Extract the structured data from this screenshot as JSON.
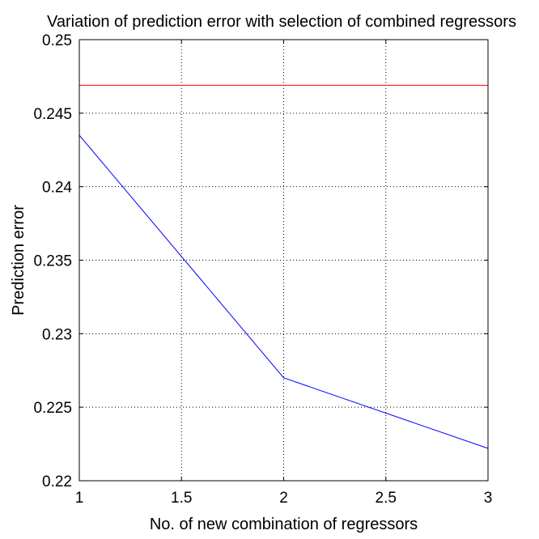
{
  "chart_data": {
    "type": "line",
    "title": "Variation of prediction error with selection of combined regressors",
    "xlabel": "No. of new combination of regressors",
    "ylabel": "Prediction error",
    "xlim": [
      1,
      3
    ],
    "ylim": [
      0.22,
      0.25
    ],
    "x_ticks": [
      1,
      1.5,
      2,
      2.5,
      3
    ],
    "x_tick_labels": [
      "1",
      "1.5",
      "2",
      "2.5",
      "3"
    ],
    "y_ticks": [
      0.22,
      0.225,
      0.23,
      0.235,
      0.24,
      0.245,
      0.25
    ],
    "y_tick_labels": [
      "0.22",
      "0.225",
      "0.23",
      "0.235",
      "0.24",
      "0.245",
      "0.25"
    ],
    "grid": true,
    "legend": "none",
    "series": [
      {
        "color": "#0000ff",
        "x": [
          1,
          2,
          3
        ],
        "y": [
          0.2435,
          0.227,
          0.2222
        ]
      },
      {
        "color": "#ff0000",
        "x": [
          1,
          3
        ],
        "y": [
          0.2469,
          0.2469
        ]
      }
    ]
  }
}
